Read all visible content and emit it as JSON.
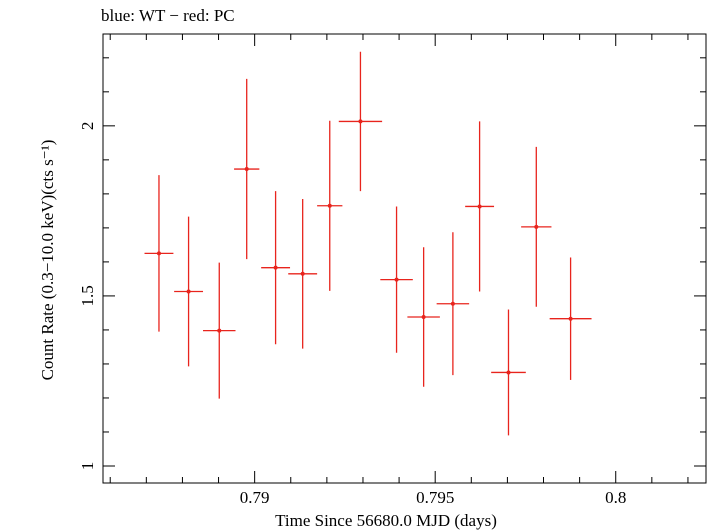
{
  "chart_data": {
    "type": "scatter",
    "title": "blue: WT − red: PC",
    "xlabel": "Time Since 56680.0 MJD (days)",
    "ylabel": "Count Rate (0.3−10.0 keV)(cts s⁻¹)",
    "xlim": [
      0.7858,
      0.8025
    ],
    "ylim": [
      0.95,
      2.27
    ],
    "x_ticks": [
      {
        "value": 0.79,
        "label": "0.79"
      },
      {
        "value": 0.795,
        "label": "0.795"
      },
      {
        "value": 0.8,
        "label": "0.8"
      }
    ],
    "y_ticks": [
      {
        "value": 1,
        "label": "1"
      },
      {
        "value": 1.5,
        "label": "1.5"
      },
      {
        "value": 2,
        "label": "2"
      }
    ],
    "grid": false,
    "series": [
      {
        "color": "#e8241d",
        "points": [
          {
            "x": 0.78735,
            "xerr": 0.0004,
            "y": 1.625,
            "yerr": 0.23
          },
          {
            "x": 0.78817,
            "xerr": 0.0004,
            "y": 1.513,
            "yerr": 0.22
          },
          {
            "x": 0.78902,
            "xerr": 0.00045,
            "y": 1.398,
            "yerr": 0.2
          },
          {
            "x": 0.78978,
            "xerr": 0.00035,
            "y": 1.873,
            "yerr": 0.265
          },
          {
            "x": 0.79058,
            "xerr": 0.0004,
            "y": 1.583,
            "yerr": 0.225
          },
          {
            "x": 0.79133,
            "xerr": 0.0004,
            "y": 1.565,
            "yerr": 0.22
          },
          {
            "x": 0.79208,
            "xerr": 0.00035,
            "y": 1.765,
            "yerr": 0.25
          },
          {
            "x": 0.79293,
            "xerr": 0.0006,
            "y": 2.013,
            "yerr": 0.205
          },
          {
            "x": 0.79393,
            "xerr": 0.00045,
            "y": 1.548,
            "yerr": 0.215
          },
          {
            "x": 0.79468,
            "xerr": 0.00045,
            "y": 1.438,
            "yerr": 0.205
          },
          {
            "x": 0.79549,
            "xerr": 0.00045,
            "y": 1.477,
            "yerr": 0.21
          },
          {
            "x": 0.79623,
            "xerr": 0.0004,
            "y": 1.763,
            "yerr": 0.25
          },
          {
            "x": 0.79703,
            "xerr": 0.00048,
            "y": 1.275,
            "yerr": 0.185
          },
          {
            "x": 0.7978,
            "xerr": 0.00042,
            "y": 1.703,
            "yerr": 0.235
          },
          {
            "x": 0.79875,
            "xerr": 0.00058,
            "y": 1.433,
            "yerr": 0.18
          }
        ]
      }
    ]
  }
}
